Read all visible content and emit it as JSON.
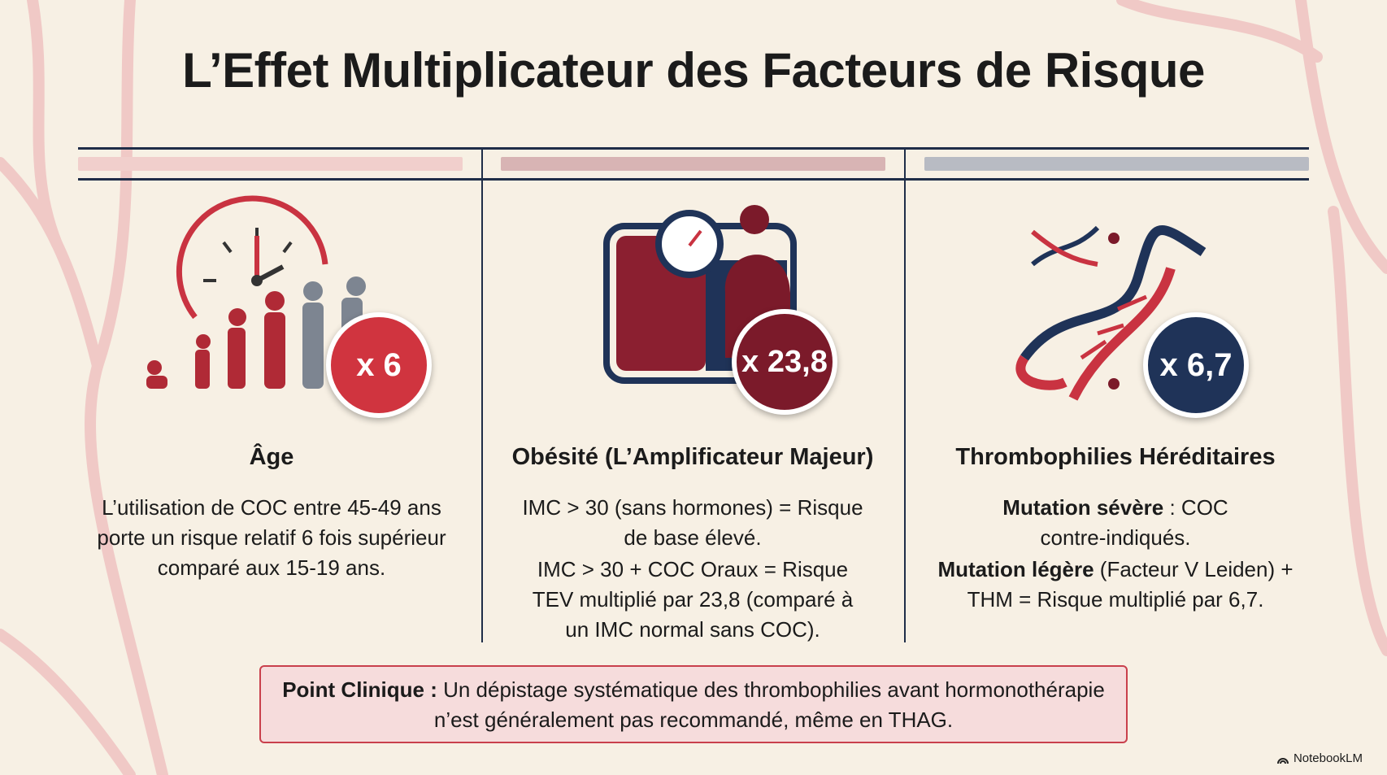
{
  "title": "L’Effet Multiplicateur des Facteurs de Risque",
  "colors": {
    "age": "#d0343f",
    "obesity": "#7b1a2a",
    "thrombo": "#1f3358"
  },
  "columns": [
    {
      "badge": "x 6",
      "heading": "Âge",
      "lines": [
        "L’utilisation de COC entre 45-49 ans porte un risque relatif 6 fois supérieur comparé aux 15-19 ans."
      ]
    },
    {
      "badge": "x 23,8",
      "heading": "Obésité (L’Amplificateur Majeur)",
      "lines": [
        "IMC > 30 (sans hormones) = Risque de base élevé.",
        "IMC > 30 + COC Oraux = Risque TEV multiplié par 23,8 (comparé à un IMC normal sans COC)."
      ]
    },
    {
      "badge": "x 6,7",
      "heading": "Thrombophilies Héréditaires",
      "p1_bold": "Mutation sévère",
      "p1_rest": " : COC contre-indiqués.",
      "p2_bold": "Mutation légère",
      "p2_rest": " (Facteur V Leiden) + THM = Risque multiplié par 6,7."
    }
  ],
  "callout": {
    "bold": "Point Clinique :",
    "text": " Un dépistage systématique des thrombophilies avant hormonothérapie n’est généralement pas recommandé, même en THAG."
  },
  "logo": "NotebookLM"
}
